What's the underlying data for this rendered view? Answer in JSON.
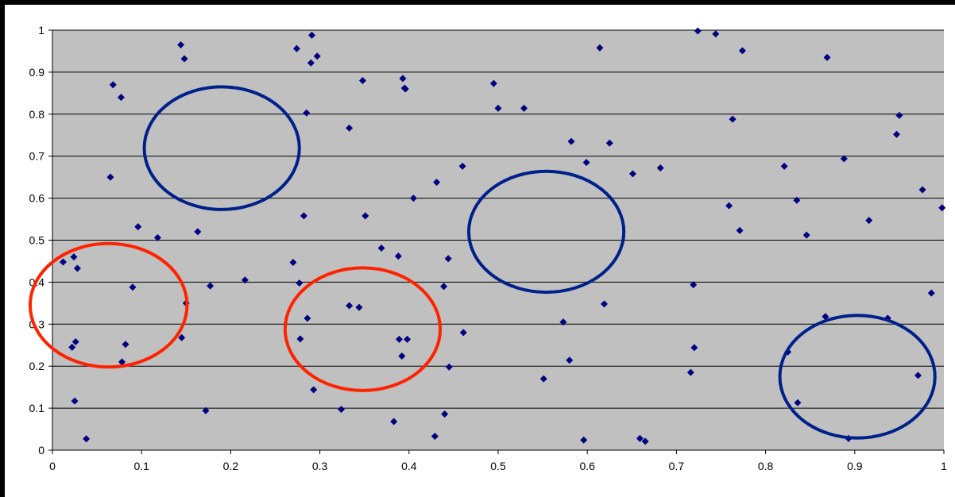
{
  "chart_data": {
    "type": "scatter",
    "title": "",
    "xlabel": "",
    "ylabel": "",
    "xlim": [
      0,
      1
    ],
    "ylim": [
      0,
      1
    ],
    "grid": "horizontal",
    "legend": "none",
    "x_ticks": [
      "0",
      "0.1",
      "0.2",
      "0.3",
      "0.4",
      "0.5",
      "0.6",
      "0.7",
      "0.8",
      "0.9",
      "1"
    ],
    "y_ticks": [
      "0",
      "0.1",
      "0.2",
      "0.3",
      "0.4",
      "0.5",
      "0.6",
      "0.7",
      "0.8",
      "0.9",
      "1"
    ],
    "colors": {
      "frame": "#000000",
      "plot_background": "#c0c0c0",
      "marker": "#000080",
      "gridline": "#000000",
      "red_circle": "#ff2200",
      "blue_circle": "#00208a"
    },
    "series": [
      {
        "marker": "diamond",
        "points": [
          [
            0.012,
            0.448
          ],
          [
            0.022,
            0.245
          ],
          [
            0.024,
            0.46
          ],
          [
            0.025,
            0.117
          ],
          [
            0.026,
            0.258
          ],
          [
            0.028,
            0.433
          ],
          [
            0.038,
            0.027
          ],
          [
            0.065,
            0.65
          ],
          [
            0.068,
            0.87
          ],
          [
            0.077,
            0.84
          ],
          [
            0.078,
            0.21
          ],
          [
            0.082,
            0.252
          ],
          [
            0.09,
            0.388
          ],
          [
            0.096,
            0.532
          ],
          [
            0.118,
            0.506
          ],
          [
            0.144,
            0.965
          ],
          [
            0.145,
            0.268
          ],
          [
            0.148,
            0.932
          ],
          [
            0.15,
            0.35
          ],
          [
            0.163,
            0.52
          ],
          [
            0.172,
            0.094
          ],
          [
            0.177,
            0.391
          ],
          [
            0.216,
            0.405
          ],
          [
            0.27,
            0.447
          ],
          [
            0.274,
            0.956
          ],
          [
            0.277,
            0.398
          ],
          [
            0.278,
            0.265
          ],
          [
            0.282,
            0.558
          ],
          [
            0.285,
            0.803
          ],
          [
            0.286,
            0.314
          ],
          [
            0.29,
            0.922
          ],
          [
            0.291,
            0.988
          ],
          [
            0.293,
            0.144
          ],
          [
            0.297,
            0.938
          ],
          [
            0.324,
            0.097
          ],
          [
            0.333,
            0.767
          ],
          [
            0.333,
            0.344
          ],
          [
            0.344,
            0.34
          ],
          [
            0.348,
            0.88
          ],
          [
            0.351,
            0.558
          ],
          [
            0.369,
            0.481
          ],
          [
            0.383,
            0.068
          ],
          [
            0.388,
            0.462
          ],
          [
            0.389,
            0.264
          ],
          [
            0.392,
            0.224
          ],
          [
            0.393,
            0.885
          ],
          [
            0.395,
            0.862
          ],
          [
            0.396,
            0.86
          ],
          [
            0.398,
            0.264
          ],
          [
            0.405,
            0.6
          ],
          [
            0.429,
            0.033
          ],
          [
            0.431,
            0.638
          ],
          [
            0.439,
            0.39
          ],
          [
            0.44,
            0.086
          ],
          [
            0.444,
            0.456
          ],
          [
            0.445,
            0.198
          ],
          [
            0.46,
            0.676
          ],
          [
            0.461,
            0.28
          ],
          [
            0.495,
            0.873
          ],
          [
            0.5,
            0.814
          ],
          [
            0.529,
            0.814
          ],
          [
            0.551,
            0.17
          ],
          [
            0.573,
            0.305
          ],
          [
            0.58,
            0.214
          ],
          [
            0.582,
            0.735
          ],
          [
            0.596,
            0.024
          ],
          [
            0.599,
            0.685
          ],
          [
            0.614,
            0.958
          ],
          [
            0.619,
            0.348
          ],
          [
            0.625,
            0.731
          ],
          [
            0.651,
            0.658
          ],
          [
            0.659,
            0.028
          ],
          [
            0.665,
            0.021
          ],
          [
            0.682,
            0.672
          ],
          [
            0.716,
            0.185
          ],
          [
            0.719,
            0.394
          ],
          [
            0.72,
            0.244
          ],
          [
            0.724,
            0.998
          ],
          [
            0.744,
            0.991
          ],
          [
            0.759,
            0.582
          ],
          [
            0.763,
            0.788
          ],
          [
            0.771,
            0.523
          ],
          [
            0.774,
            0.951
          ],
          [
            0.821,
            0.676
          ],
          [
            0.825,
            0.234
          ],
          [
            0.835,
            0.595
          ],
          [
            0.836,
            0.113
          ],
          [
            0.846,
            0.512
          ],
          [
            0.867,
            0.318
          ],
          [
            0.869,
            0.935
          ],
          [
            0.888,
            0.694
          ],
          [
            0.893,
            0.028
          ],
          [
            0.916,
            0.547
          ],
          [
            0.937,
            0.314
          ],
          [
            0.947,
            0.752
          ],
          [
            0.95,
            0.797
          ],
          [
            0.971,
            0.178
          ],
          [
            0.976,
            0.62
          ],
          [
            0.986,
            0.374
          ],
          [
            0.998,
            0.577
          ]
        ]
      }
    ],
    "annotations": [
      {
        "shape": "ellipse",
        "color": "red",
        "cx": 0.063,
        "cy": 0.345,
        "rx": 0.088,
        "ry": 0.147
      },
      {
        "shape": "ellipse",
        "color": "red",
        "cx": 0.348,
        "cy": 0.288,
        "rx": 0.087,
        "ry": 0.146
      },
      {
        "shape": "ellipse",
        "color": "blue",
        "cx": 0.19,
        "cy": 0.719,
        "rx": 0.087,
        "ry": 0.146
      },
      {
        "shape": "ellipse",
        "color": "blue",
        "cx": 0.554,
        "cy": 0.52,
        "rx": 0.087,
        "ry": 0.144
      },
      {
        "shape": "ellipse",
        "color": "blue",
        "cx": 0.903,
        "cy": 0.175,
        "rx": 0.087,
        "ry": 0.146
      }
    ]
  }
}
